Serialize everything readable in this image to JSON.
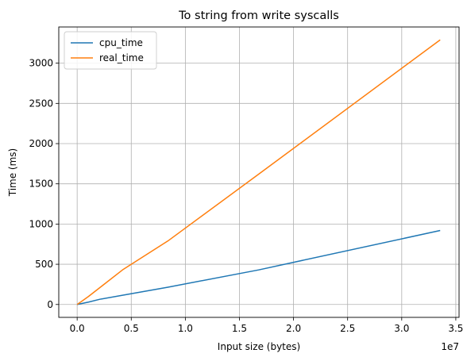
{
  "chart_data": {
    "type": "line",
    "title": "To string from write syscalls",
    "xlabel": "Input size (bytes)",
    "ylabel": "Time (ms)",
    "x_offset_label": "1e7",
    "x_scale": 10000000,
    "xlim": [
      -0.17,
      3.53
    ],
    "ylim": [
      -160,
      3450
    ],
    "x_ticks": [
      0.0,
      0.5,
      1.0,
      1.5,
      2.0,
      2.5,
      3.0,
      3.5
    ],
    "x_tick_labels": [
      "0.0",
      "0.5",
      "1.0",
      "1.5",
      "2.0",
      "2.5",
      "3.0",
      "3.5"
    ],
    "y_ticks": [
      0,
      500,
      1000,
      1500,
      2000,
      2500,
      3000
    ],
    "y_tick_labels": [
      "0",
      "500",
      "1000",
      "1500",
      "2000",
      "2500",
      "3000"
    ],
    "grid": true,
    "legend_position": "top-left",
    "series": [
      {
        "name": "cpu_time",
        "color": "#1f77b4",
        "x": [
          0.0,
          0.0524,
          0.1049,
          0.2097,
          0.4194,
          0.8389,
          1.6777,
          3.3554
        ],
        "y": [
          0,
          15,
          30,
          65,
          115,
          215,
          430,
          920
        ]
      },
      {
        "name": "real_time",
        "color": "#ff7f0e",
        "x": [
          0.0,
          0.0524,
          0.1049,
          0.2097,
          0.4194,
          0.8389,
          1.6777,
          3.3554
        ],
        "y": [
          0,
          50,
          100,
          210,
          430,
          790,
          1620,
          3290
        ]
      }
    ]
  }
}
